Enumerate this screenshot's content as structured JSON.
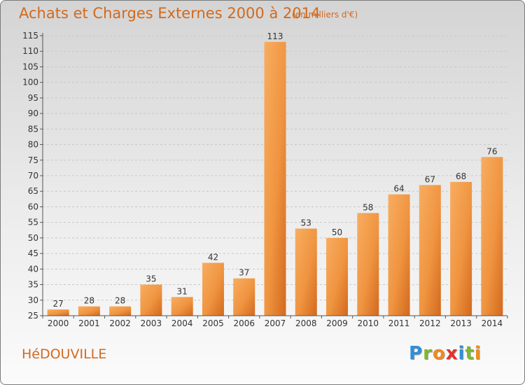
{
  "header": {
    "title": "Achats et Charges Externes 2000 à 2014",
    "subtitle": "(en milliers d'€)"
  },
  "footer": {
    "commune": "HéDOUVILLE",
    "logo": {
      "letters": [
        "P",
        "r",
        "o",
        "x",
        "i",
        "t",
        "i"
      ],
      "colors": [
        "#2f8fd8",
        "#7cb82f",
        "#f08a1e",
        "#e2322b",
        "#2f8fd8",
        "#7cb82f",
        "#f08a1e"
      ]
    }
  },
  "chart_data": {
    "type": "bar",
    "categories": [
      "2000",
      "2001",
      "2002",
      "2003",
      "2004",
      "2005",
      "2006",
      "2007",
      "2008",
      "2009",
      "2010",
      "2011",
      "2012",
      "2013",
      "2014"
    ],
    "values": [
      27,
      28,
      28,
      35,
      31,
      42,
      37,
      113,
      53,
      50,
      58,
      64,
      67,
      68,
      76
    ],
    "data_labels": [
      "27",
      "28",
      "28",
      "35",
      "31",
      "42",
      "37",
      "113",
      "53",
      "50",
      "58",
      "64",
      "67",
      "68",
      "76"
    ],
    "ylim": [
      25,
      115
    ],
    "yticks": [
      "25",
      "30",
      "35",
      "40",
      "45",
      "50",
      "55",
      "60",
      "65",
      "70",
      "75",
      "80",
      "85",
      "90",
      "95",
      "100",
      "105",
      "110",
      "115"
    ],
    "ytick_values": [
      25,
      30,
      35,
      40,
      45,
      50,
      55,
      60,
      65,
      70,
      75,
      80,
      85,
      90,
      95,
      100,
      105,
      110,
      115
    ],
    "grid": true,
    "colors": {
      "bar_light": "#f6a655",
      "bar_dark": "#d2691e",
      "grid": "#c8c8c8",
      "axis": "#555555",
      "text": "#333333"
    }
  }
}
